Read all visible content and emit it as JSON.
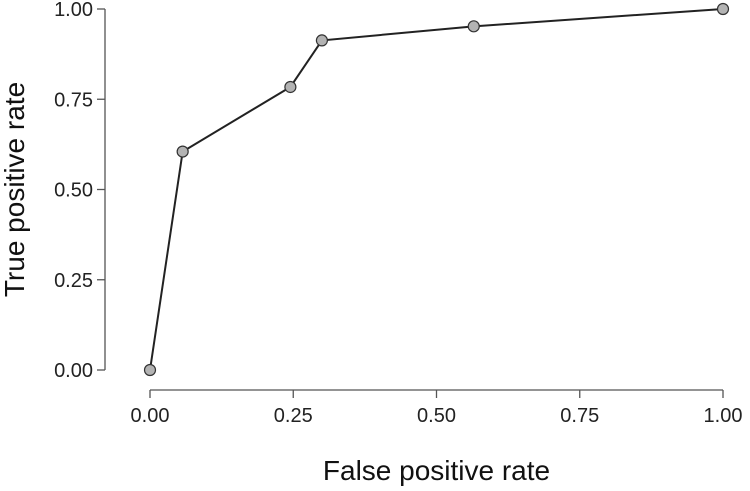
{
  "chart_data": {
    "type": "line",
    "xlabel": "False positive rate",
    "ylabel": "True positive rate",
    "xlim": [
      0,
      1
    ],
    "ylim": [
      0,
      1
    ],
    "grid": false,
    "x_ticks": [
      "0.00",
      "0.25",
      "0.50",
      "0.75",
      "1.00"
    ],
    "y_ticks": [
      "0.00",
      "0.25",
      "0.50",
      "0.75",
      "1.00"
    ],
    "series": [
      {
        "x": [
          0.0,
          0.057,
          0.245,
          0.3,
          0.565,
          1.0
        ],
        "y": [
          0.0,
          0.605,
          0.784,
          0.913,
          0.952,
          1.0
        ]
      }
    ],
    "colors": {
      "line": "#222222",
      "marker_fill": "#b3b3b3",
      "marker_stroke": "#333333"
    }
  }
}
